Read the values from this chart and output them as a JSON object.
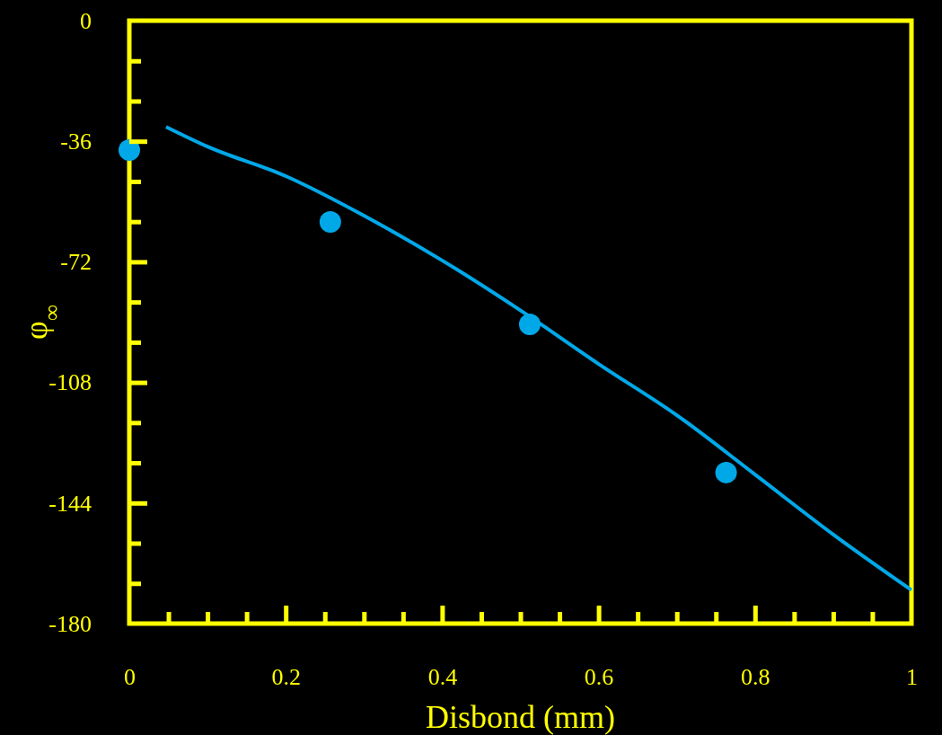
{
  "chart_data": {
    "type": "scatter",
    "xlabel": "Disbond (mm)",
    "ylabel": "φ$_{∞}$",
    "series": [
      {
        "type": "scatter",
        "color": "#00a8e8",
        "marker": "circle",
        "x": [
          0,
          0.257,
          0.512,
          0.763
        ],
        "values": [
          -38.6,
          -60.1,
          -90.7,
          -134.9
        ]
      },
      {
        "type": "line",
        "color": "#00a8e8",
        "marker": "none",
        "x": [
          0.047,
          0.1,
          0.2,
          0.3,
          0.4,
          0.5,
          0.6,
          0.7,
          0.8,
          0.9,
          1.0
        ],
        "values": [
          -31.7,
          -37.6,
          -46.4,
          -58.2,
          -71.6,
          -86.5,
          -102.5,
          -117.8,
          -135.5,
          -153.4,
          -170
        ]
      }
    ],
    "xlim": [
      0,
      1
    ],
    "xticks": [
      0,
      {
        "value": 0.05,
        "label": null
      },
      {
        "value": 0.1,
        "label": null
      },
      {
        "value": 0.15,
        "label": null
      },
      0.2,
      {
        "value": 0.25,
        "label": null
      },
      {
        "value": 0.3,
        "label": null
      },
      {
        "value": 0.35,
        "label": null
      },
      0.4,
      {
        "value": 0.45,
        "label": null
      },
      {
        "value": 0.5,
        "label": null
      },
      {
        "value": 0.55,
        "label": null
      },
      0.6,
      {
        "value": 0.65,
        "label": null
      },
      {
        "value": 0.7,
        "label": null
      },
      {
        "value": 0.75,
        "label": null
      },
      0.8,
      {
        "value": 0.85,
        "label": null
      },
      {
        "value": 0.9,
        "label": null
      },
      {
        "value": 0.95,
        "label": null
      },
      1
    ],
    "ylim": [
      -180,
      0
    ],
    "yticks": [
      0,
      {
        "value": -12,
        "label": null
      },
      {
        "value": -24,
        "label": null
      },
      -36,
      {
        "value": -48,
        "label": null
      },
      {
        "value": -60,
        "label": null
      },
      -72,
      {
        "value": -84,
        "label": null
      },
      {
        "value": -96,
        "label": null
      },
      -108,
      {
        "value": -120,
        "label": null
      },
      {
        "value": -132,
        "label": null
      },
      -144,
      {
        "value": -156,
        "label": null
      },
      {
        "value": -168,
        "label": null
      },
      -180
    ],
    "grid": false
  }
}
